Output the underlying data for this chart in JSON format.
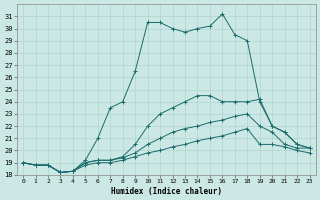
{
  "xlabel": "Humidex (Indice chaleur)",
  "ylabel": "",
  "background_color": "#cce8e5",
  "grid_color": "#afd4d0",
  "line_color": "#1a6b6b",
  "ylim": [
    18,
    32
  ],
  "xlim": [
    -0.5,
    23.5
  ],
  "yticks": [
    18,
    19,
    20,
    21,
    22,
    23,
    24,
    25,
    26,
    27,
    28,
    29,
    30,
    31
  ],
  "xticks": [
    0,
    1,
    2,
    3,
    4,
    5,
    6,
    7,
    8,
    9,
    10,
    11,
    12,
    13,
    14,
    15,
    16,
    17,
    18,
    19,
    20,
    21,
    22,
    23
  ],
  "lines": [
    {
      "x": [
        0,
        1,
        2,
        3,
        4,
        5,
        6,
        7,
        8,
        9,
        10,
        11,
        12,
        13,
        14,
        15,
        16,
        17,
        18,
        19,
        20,
        21,
        22,
        23
      ],
      "y": [
        19.0,
        18.8,
        18.8,
        18.2,
        18.3,
        19.2,
        21.0,
        23.5,
        24.0,
        26.5,
        30.5,
        30.5,
        30.0,
        29.7,
        30.0,
        30.2,
        31.2,
        29.5,
        29.0,
        24.0,
        22.0,
        21.5,
        20.5,
        20.2
      ]
    },
    {
      "x": [
        0,
        1,
        2,
        3,
        4,
        5,
        6,
        7,
        8,
        9,
        10,
        11,
        12,
        13,
        14,
        15,
        16,
        17,
        18,
        19,
        20,
        21,
        22,
        23
      ],
      "y": [
        19.0,
        18.8,
        18.8,
        18.2,
        18.3,
        19.0,
        19.2,
        19.2,
        19.5,
        20.5,
        22.0,
        23.0,
        23.5,
        24.0,
        24.5,
        24.5,
        24.0,
        24.0,
        24.0,
        24.2,
        22.0,
        21.5,
        20.5,
        20.2
      ]
    },
    {
      "x": [
        0,
        1,
        2,
        3,
        4,
        5,
        6,
        7,
        8,
        9,
        10,
        11,
        12,
        13,
        14,
        15,
        16,
        17,
        18,
        19,
        20,
        21,
        22,
        23
      ],
      "y": [
        19.0,
        18.8,
        18.8,
        18.2,
        18.3,
        19.0,
        19.2,
        19.2,
        19.4,
        19.8,
        20.5,
        21.0,
        21.5,
        21.8,
        22.0,
        22.3,
        22.5,
        22.8,
        23.0,
        22.0,
        21.5,
        20.5,
        20.2,
        20.2
      ]
    },
    {
      "x": [
        0,
        1,
        2,
        3,
        4,
        5,
        6,
        7,
        8,
        9,
        10,
        11,
        12,
        13,
        14,
        15,
        16,
        17,
        18,
        19,
        20,
        21,
        22,
        23
      ],
      "y": [
        19.0,
        18.8,
        18.8,
        18.2,
        18.3,
        18.8,
        19.0,
        19.0,
        19.2,
        19.5,
        19.8,
        20.0,
        20.3,
        20.5,
        20.8,
        21.0,
        21.2,
        21.5,
        21.8,
        20.5,
        20.5,
        20.3,
        20.0,
        19.8
      ]
    }
  ]
}
